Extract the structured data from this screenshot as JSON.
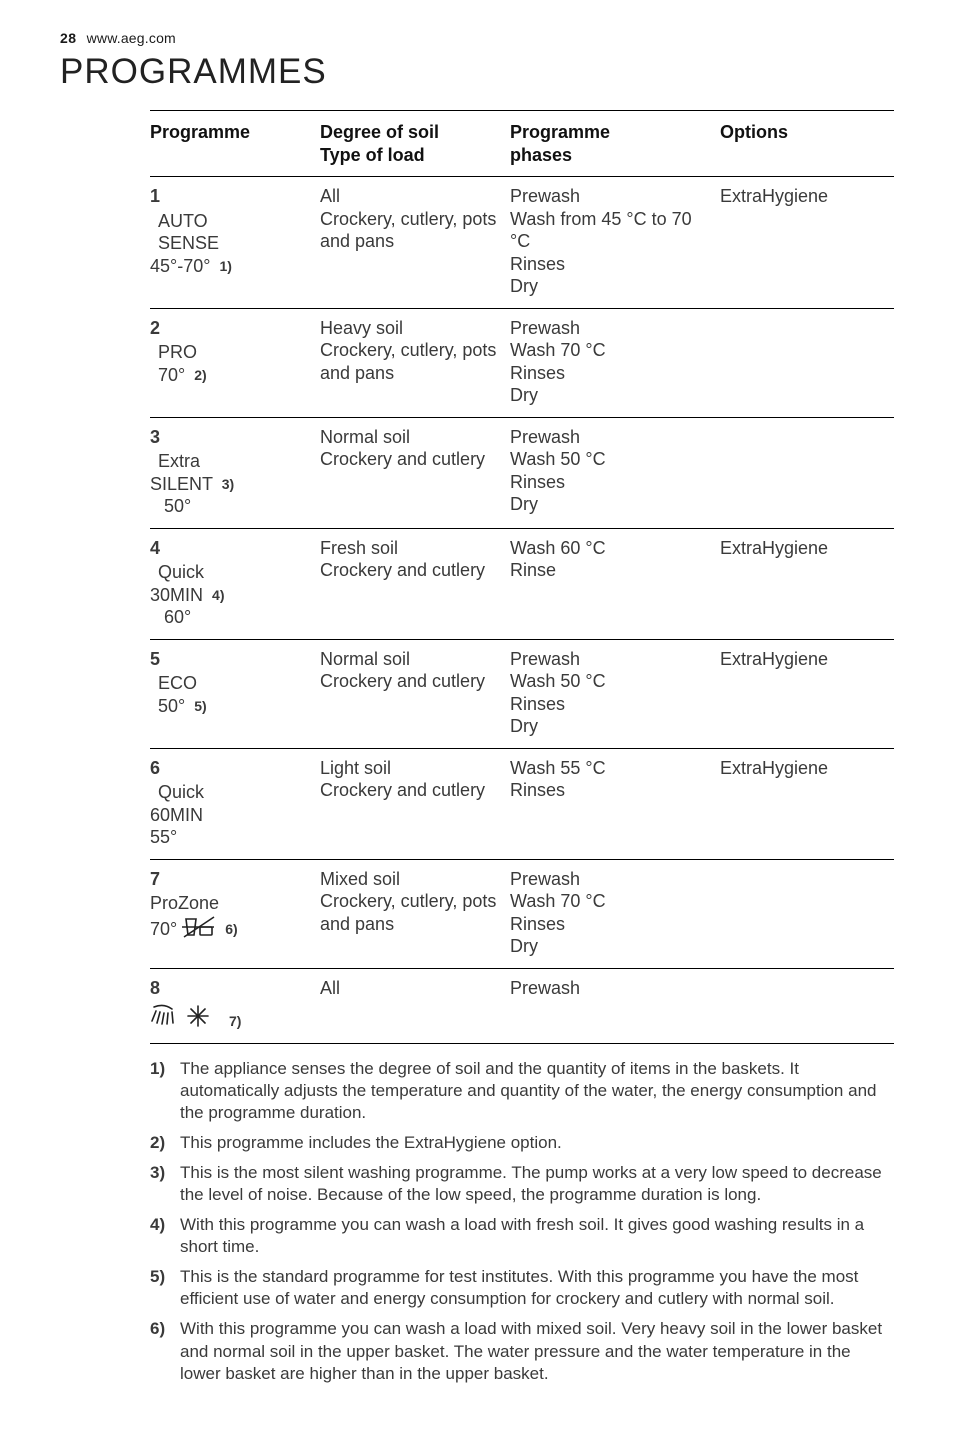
{
  "meta": {
    "page_number": "28",
    "site_url": "www.aeg.com",
    "section_title": "PROGRAMMES"
  },
  "colors": {
    "text": "#3a3a3a",
    "header_text": "#111111",
    "rule": "#000000",
    "background": "#ffffff"
  },
  "typography": {
    "body_pt": 18,
    "title_pt": 35,
    "body_weight": 300,
    "header_weight": 600
  },
  "table": {
    "headers": {
      "programme": "Programme",
      "soil_line1": "Degree of soil",
      "soil_line2": "Type of load",
      "phases_line1": "Programme",
      "phases_line2": "phases",
      "options": "Options"
    },
    "rows": [
      {
        "num": "1",
        "name_lines": [
          "AUTO",
          "SENSE",
          "45°-70°"
        ],
        "indent": [
          "indent-small",
          "indent-small",
          ""
        ],
        "note_ref": "1)",
        "note_after_line_index": 2,
        "soil": "All\nCrockery, cutlery, pots and pans",
        "phases": "Prewash\nWash from 45 °C to 70 °C\nRinses\nDry",
        "options": "ExtraHygiene",
        "icon": null
      },
      {
        "num": "2",
        "name_lines": [
          "PRO",
          "70°"
        ],
        "indent": [
          "indent-small",
          "indent-small"
        ],
        "note_ref": "2)",
        "note_after_line_index": 1,
        "soil": "Heavy soil\nCrockery, cutlery, pots and pans",
        "phases": "Prewash\nWash 70 °C\nRinses\nDry",
        "options": "",
        "icon": null
      },
      {
        "num": "3",
        "name_lines": [
          "Extra",
          "SILENT",
          "50°"
        ],
        "indent": [
          "indent-small",
          "",
          "indent-med"
        ],
        "note_ref": "3)",
        "note_after_line_index": 1,
        "soil": "Normal soil\nCrockery and cutlery",
        "phases": "Prewash\nWash 50 °C\nRinses\nDry",
        "options": "",
        "icon": null
      },
      {
        "num": "4",
        "name_lines": [
          "Quick",
          "30MIN",
          "60°"
        ],
        "indent": [
          "indent-small",
          "",
          "indent-med"
        ],
        "note_ref": "4)",
        "note_after_line_index": 1,
        "soil": "Fresh soil\nCrockery and cutlery",
        "phases": "Wash 60 °C\nRinse",
        "options": "ExtraHygiene",
        "icon": null
      },
      {
        "num": "5",
        "name_lines": [
          "ECO",
          "50°"
        ],
        "indent": [
          "indent-small",
          "indent-small"
        ],
        "note_ref": "5)",
        "note_after_line_index": 1,
        "soil": "Normal soil\nCrockery and cutlery",
        "phases": "Prewash\nWash 50 °C\nRinses\nDry",
        "options": "ExtraHygiene",
        "icon": null
      },
      {
        "num": "6",
        "name_lines": [
          "Quick",
          "60MIN",
          "55°"
        ],
        "indent": [
          "indent-small",
          "",
          ""
        ],
        "note_ref": "",
        "note_after_line_index": -1,
        "soil": "Light soil\nCrockery and cutlery",
        "phases": "Wash 55 °C\nRinses",
        "options": "ExtraHygiene",
        "icon": null
      },
      {
        "num": "7",
        "name_lines": [
          "ProZone",
          "70°"
        ],
        "indent": [
          "",
          ""
        ],
        "note_ref": "6)",
        "note_after_line_index": 1,
        "soil": "Mixed soil\nCrockery, cutlery, pots and pans",
        "phases": "Prewash\nWash 70 °C\nRinses\nDry",
        "options": "",
        "icon": "prozone"
      },
      {
        "num": "8",
        "name_lines": [
          ""
        ],
        "indent": [
          ""
        ],
        "note_ref": "7)",
        "note_after_line_index": 0,
        "soil": "All",
        "phases": "Prewash",
        "options": "",
        "icon": "prewash"
      }
    ]
  },
  "footnotes": [
    {
      "num": "1)",
      "text": "The appliance senses the degree of soil and the quantity of items in the baskets. It automatically adjusts the temperature and quantity of the water, the energy consumption and the programme duration."
    },
    {
      "num": "2)",
      "text": "This programme includes the ExtraHygiene option."
    },
    {
      "num": "3)",
      "text": "This is the most silent washing programme. The pump works at a very low speed to decrease the level of noise. Because of the low speed, the programme duration is long."
    },
    {
      "num": "4)",
      "text": "With this programme you can wash a load with fresh soil. It gives good washing results in a short time."
    },
    {
      "num": "5)",
      "text": "This is the standard programme for test institutes. With this programme you have the most efficient use of water and energy consumption for crockery and cutlery with normal soil."
    },
    {
      "num": "6)",
      "text": "With this programme you can wash a load with mixed soil. Very heavy soil in the lower basket and normal soil in the upper basket. The water pressure and the water temperature in the lower basket are higher than in the upper basket."
    }
  ]
}
